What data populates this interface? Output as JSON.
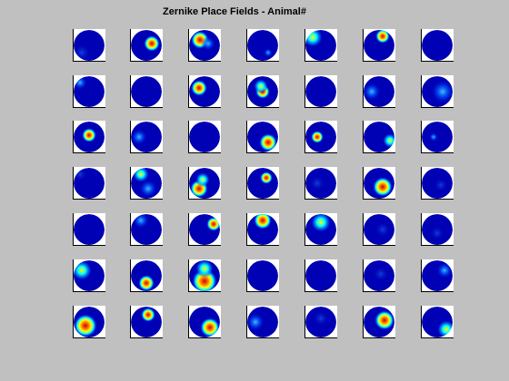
{
  "title": "Zernike Place Fields - Animal#"
}
